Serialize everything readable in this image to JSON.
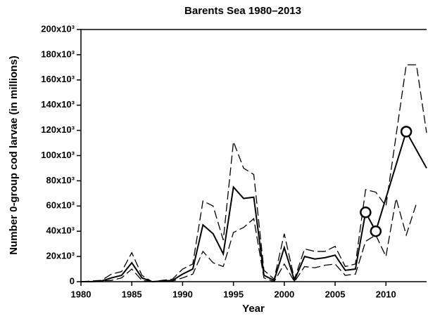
{
  "chart_data": {
    "type": "line",
    "title": "Barents Sea 1980–2013",
    "x_label": "Year",
    "y_label": "Number 0-group cod larvae (in millions)",
    "xlim": [
      1980,
      2014
    ],
    "xticks": [
      1980,
      1985,
      1990,
      1995,
      2000,
      2005,
      2010
    ],
    "ylim": [
      0,
      200000
    ],
    "yticks": [
      0,
      {
        "value": 20000,
        "label": "20x10³"
      },
      {
        "value": 40000,
        "label": "40x10³"
      },
      {
        "value": 60000,
        "label": "60x10³"
      },
      {
        "value": 80000,
        "label": "80x10³"
      },
      {
        "value": 100000,
        "label": "100x10³"
      },
      {
        "value": 120000,
        "label": "120x10³"
      },
      {
        "value": 140000,
        "label": "140x10³"
      },
      {
        "value": 160000,
        "label": "160x10³"
      },
      {
        "value": 180000,
        "label": "180x10³"
      },
      {
        "value": 200000,
        "label": "200x10³"
      }
    ],
    "series": [
      {
        "color": "#000000",
        "dash": "solid",
        "x": [
          1980,
          1981,
          1982,
          1983,
          1984,
          1985,
          1986,
          1987,
          1988,
          1989,
          1990,
          1991,
          1992,
          1993,
          1994,
          1995,
          1996,
          1997,
          1998,
          1999,
          2000,
          2001,
          2002,
          2003,
          2004,
          2005,
          2006,
          2007,
          2008,
          2009,
          2012,
          2014
        ],
        "values": [
          0,
          0,
          500,
          3000,
          5000,
          15000,
          3000,
          0,
          500,
          1000,
          6000,
          10000,
          45000,
          38000,
          22000,
          75000,
          66000,
          67000,
          5000,
          1000,
          27000,
          1000,
          20000,
          18000,
          19000,
          21000,
          9000,
          10000,
          55000,
          40000,
          119000,
          90000
        ]
      },
      {
        "color": "#000000",
        "dash": "dashed",
        "x": [
          1980,
          1982,
          1983,
          1984,
          1985,
          1986,
          1987,
          1988,
          1989,
          1990,
          1991,
          1992,
          1993,
          1994,
          1995,
          1996,
          1997,
          1998,
          1999,
          2000,
          2001,
          2002,
          2003,
          2004,
          2005,
          2006,
          2007,
          2008,
          2009,
          2010,
          2012,
          2013,
          2014
        ],
        "values": [
          0,
          1000,
          6000,
          8000,
          23000,
          5000,
          0,
          1000,
          2000,
          10000,
          14000,
          64000,
          60000,
          33000,
          111000,
          90000,
          85000,
          9000,
          2000,
          38000,
          2000,
          26000,
          24000,
          24000,
          28000,
          12000,
          14000,
          73000,
          71000,
          60000,
          172000,
          172000,
          118000
        ]
      },
      {
        "color": "#000000",
        "dash": "dashed",
        "x": [
          1980,
          1983,
          1984,
          1985,
          1986,
          1987,
          1989,
          1990,
          1991,
          1992,
          1993,
          1994,
          1995,
          1996,
          1997,
          1998,
          1999,
          2000,
          2001,
          2002,
          2003,
          2004,
          2005,
          2006,
          2007,
          2008,
          2009,
          2010,
          2011,
          2012,
          2013
        ],
        "values": [
          0,
          1000,
          3000,
          10000,
          1000,
          0,
          500,
          3000,
          6000,
          24000,
          15000,
          12000,
          39000,
          43000,
          50000,
          3000,
          0,
          14000,
          0,
          12000,
          11000,
          13000,
          14000,
          5000,
          6000,
          32000,
          37000,
          20000,
          66000,
          37000,
          62000
        ]
      },
      {
        "color": "#000000",
        "marker": "circle",
        "x": [
          2008,
          2009,
          2012
        ],
        "values": [
          55000,
          40000,
          119000
        ]
      }
    ]
  }
}
